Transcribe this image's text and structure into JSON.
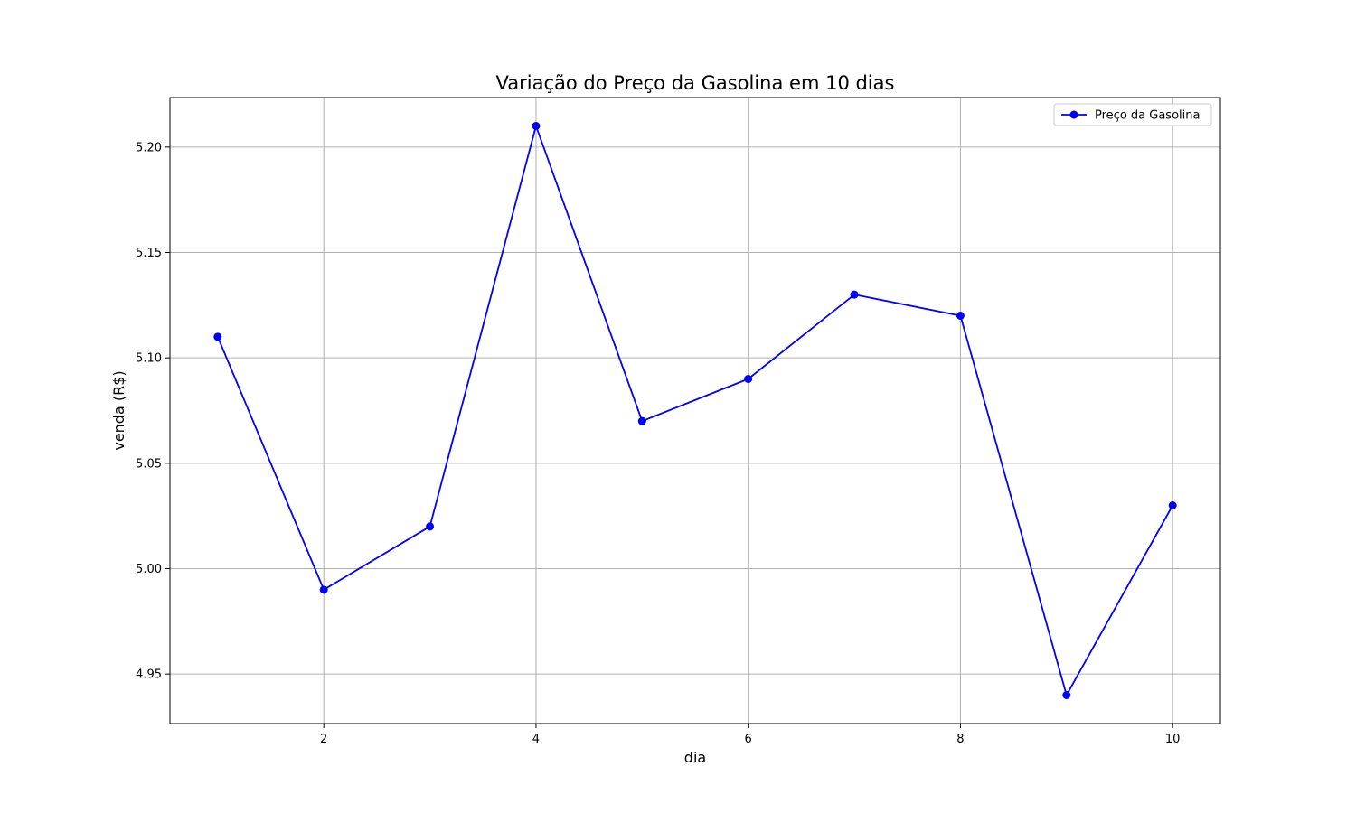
{
  "chart_data": {
    "type": "line",
    "title": "Variação do Preço da Gasolina em 10 dias",
    "xlabel": "dia",
    "ylabel": "venda (R$)",
    "x": [
      1,
      2,
      3,
      4,
      5,
      6,
      7,
      8,
      9,
      10
    ],
    "series": [
      {
        "name": "Preço da Gasolina",
        "color": "#0000ff",
        "marker": "circle",
        "values": [
          5.11,
          4.99,
          5.02,
          5.21,
          5.07,
          5.09,
          5.13,
          5.12,
          4.94,
          5.03
        ]
      }
    ],
    "xlim": [
      0.55,
      10.45
    ],
    "ylim": [
      4.9265,
      5.2235
    ],
    "xticks": [
      2,
      4,
      6,
      8,
      10
    ],
    "xtick_labels": [
      "2",
      "4",
      "6",
      "8",
      "10"
    ],
    "yticks": [
      4.95,
      5.0,
      5.05,
      5.1,
      5.15,
      5.2
    ],
    "ytick_labels": [
      "4.95",
      "5.00",
      "5.05",
      "5.10",
      "5.15",
      "5.20"
    ],
    "grid": true,
    "legend_position": "upper-right"
  }
}
